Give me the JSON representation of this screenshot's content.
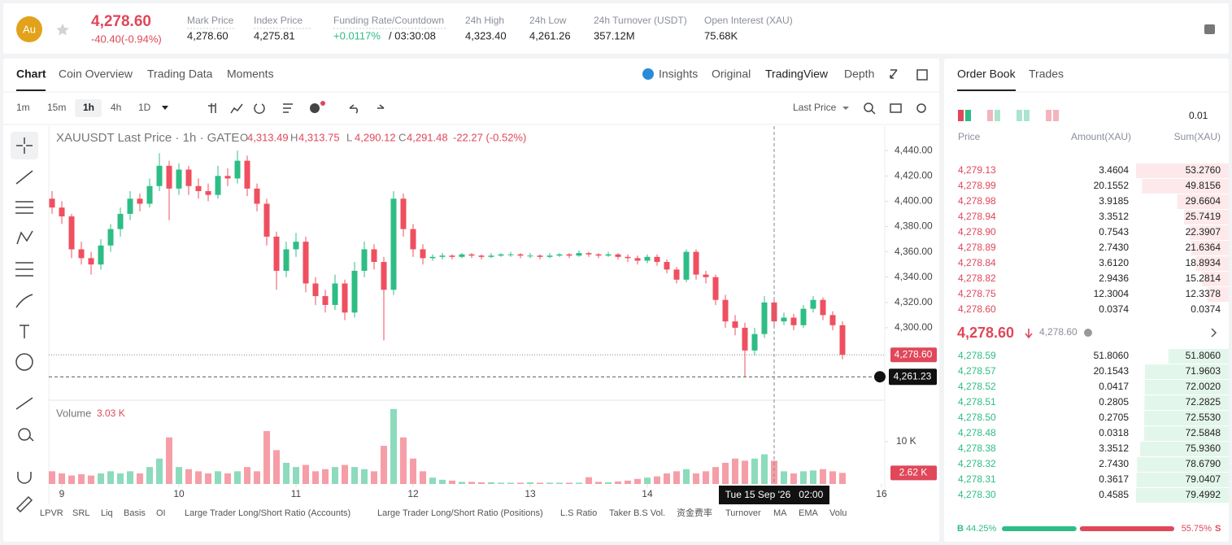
{
  "header": {
    "symbol_icon": "Au",
    "price": "4,278.60",
    "change": "-40.40(-0.94%)",
    "stats": [
      {
        "label": "Mark Price",
        "value": "4,278.60"
      },
      {
        "label": "Index Price",
        "value": "4,275.81"
      },
      {
        "label": "Funding Rate/Countdown",
        "value": "+0.0117%",
        "value2": "/ 03:30:08"
      },
      {
        "label": "24h High",
        "value": "4,323.40"
      },
      {
        "label": "24h Low",
        "value": "4,261.26"
      },
      {
        "label": "24h Turnover (USDT)",
        "value": "357.12M"
      },
      {
        "label": "Open Interest (XAU)",
        "value": "75.68K"
      }
    ]
  },
  "tabs": [
    "Chart",
    "Coin Overview",
    "Trading Data",
    "Moments"
  ],
  "view_tabs": [
    "Insights",
    "Original",
    "TradingView",
    "Depth"
  ],
  "intervals": [
    "1m",
    "15m",
    "1h",
    "4h",
    "1D"
  ],
  "price_type": "Last Price",
  "chart_data": {
    "type": "candlestick",
    "title": "XAUUSDT Last Price · 1h · GATE",
    "ohlc_legend": [
      {
        "key": "O",
        "value": "4,313.49"
      },
      {
        "key": "H",
        "value": "4,313.75"
      },
      {
        "key": "L",
        "value": "4,290.12"
      },
      {
        "key": "C",
        "value": "4,291.48"
      }
    ],
    "change": "-22.27 (-0.52%)",
    "up_color": "#2ebd85",
    "down_color": "#ef4f5f",
    "grid": false,
    "x": [
      0,
      2,
      4,
      6,
      8,
      10,
      12,
      14,
      16,
      18,
      20,
      22,
      24,
      26,
      28,
      30,
      32,
      34,
      36,
      38,
      40,
      42,
      44,
      46,
      48,
      50,
      52,
      54,
      56,
      58,
      60,
      62,
      64,
      66,
      68,
      70,
      72,
      74,
      76,
      78,
      80,
      82,
      84,
      86,
      88,
      90,
      92,
      94,
      96,
      98,
      100,
      102,
      104,
      106,
      108,
      110,
      112,
      114,
      116,
      118,
      120,
      122,
      124,
      126,
      128,
      130,
      132,
      134,
      136,
      138,
      140,
      142,
      144,
      146,
      148,
      150,
      152,
      154,
      156,
      158,
      160,
      162
    ],
    "candles": [
      [
        4402,
        4408,
        4390,
        4395
      ],
      [
        4395,
        4400,
        4382,
        4388
      ],
      [
        4388,
        4390,
        4355,
        4362
      ],
      [
        4362,
        4368,
        4350,
        4355
      ],
      [
        4355,
        4360,
        4342,
        4350
      ],
      [
        4350,
        4370,
        4346,
        4365
      ],
      [
        4365,
        4382,
        4360,
        4378
      ],
      [
        4378,
        4395,
        4372,
        4390
      ],
      [
        4390,
        4408,
        4385,
        4402
      ],
      [
        4402,
        4406,
        4392,
        4398
      ],
      [
        4398,
        4418,
        4395,
        4412
      ],
      [
        4412,
        4438,
        4408,
        4428
      ],
      [
        4428,
        4432,
        4385,
        4410
      ],
      [
        4410,
        4430,
        4405,
        4425
      ],
      [
        4425,
        4428,
        4405,
        4412
      ],
      [
        4412,
        4418,
        4402,
        4408
      ],
      [
        4408,
        4414,
        4400,
        4405
      ],
      [
        4405,
        4428,
        4402,
        4420
      ],
      [
        4420,
        4426,
        4412,
        4418
      ],
      [
        4418,
        4440,
        4414,
        4432
      ],
      [
        4432,
        4436,
        4404,
        4410
      ],
      [
        4410,
        4414,
        4392,
        4398
      ],
      [
        4398,
        4402,
        4365,
        4372
      ],
      [
        4372,
        4376,
        4330,
        4345
      ],
      [
        4345,
        4368,
        4340,
        4362
      ],
      [
        4362,
        4375,
        4356,
        4368
      ],
      [
        4368,
        4372,
        4328,
        4335
      ],
      [
        4335,
        4340,
        4318,
        4325
      ],
      [
        4325,
        4330,
        4312,
        4318
      ],
      [
        4318,
        4342,
        4314,
        4335
      ],
      [
        4335,
        4338,
        4306,
        4312
      ],
      [
        4312,
        4352,
        4308,
        4345
      ],
      [
        4345,
        4368,
        4340,
        4362
      ],
      [
        4362,
        4366,
        4346,
        4352
      ],
      [
        4352,
        4356,
        4290,
        4330
      ],
      [
        4330,
        4408,
        4326,
        4402
      ],
      [
        4402,
        4406,
        4372,
        4378
      ],
      [
        4378,
        4382,
        4356,
        4362
      ],
      [
        4362,
        4366,
        4350,
        4355
      ],
      [
        4355,
        4358,
        4353,
        4356
      ],
      [
        4356,
        4359,
        4354,
        4357
      ],
      [
        4357,
        4358,
        4354,
        4356
      ],
      [
        4356,
        4359,
        4355,
        4358
      ],
      [
        4358,
        4359,
        4355,
        4357
      ],
      [
        4357,
        4358,
        4354,
        4356
      ],
      [
        4356,
        4359,
        4355,
        4357
      ],
      [
        4357,
        4359,
        4356,
        4358
      ],
      [
        4358,
        4360,
        4356,
        4358
      ],
      [
        4358,
        4359,
        4355,
        4357
      ],
      [
        4357,
        4359,
        4355,
        4357
      ],
      [
        4357,
        4358,
        4354,
        4356
      ],
      [
        4356,
        4359,
        4355,
        4357
      ],
      [
        4357,
        4359,
        4356,
        4358
      ],
      [
        4358,
        4359,
        4355,
        4357
      ],
      [
        4357,
        4361,
        4356,
        4359
      ],
      [
        4359,
        4360,
        4356,
        4358
      ],
      [
        4358,
        4359,
        4355,
        4357
      ],
      [
        4357,
        4360,
        4356,
        4358
      ],
      [
        4358,
        4359,
        4354,
        4356
      ],
      [
        4356,
        4358,
        4352,
        4355
      ],
      [
        4355,
        4357,
        4350,
        4353
      ],
      [
        4353,
        4358,
        4351,
        4356
      ],
      [
        4356,
        4358,
        4349,
        4352
      ],
      [
        4352,
        4354,
        4343,
        4346
      ],
      [
        4346,
        4348,
        4335,
        4338
      ],
      [
        4338,
        4362,
        4336,
        4360
      ],
      [
        4360,
        4362,
        4338,
        4342
      ],
      [
        4342,
        4345,
        4335,
        4340
      ],
      [
        4340,
        4342,
        4318,
        4322
      ],
      [
        4322,
        4326,
        4300,
        4305
      ],
      [
        4305,
        4310,
        4294,
        4300
      ],
      [
        4300,
        4304,
        4261.23,
        4282
      ],
      [
        4282,
        4300,
        4278,
        4295
      ],
      [
        4295,
        4325,
        4292,
        4320
      ],
      [
        4320,
        4323,
        4300,
        4305
      ],
      [
        4305,
        4312,
        4302,
        4308
      ],
      [
        4308,
        4311,
        4298,
        4302
      ],
      [
        4302,
        4318,
        4300,
        4315
      ],
      [
        4315,
        4325,
        4312,
        4322
      ],
      [
        4322,
        4324,
        4306,
        4310
      ],
      [
        4310,
        4313,
        4298,
        4302
      ],
      [
        4302,
        4305,
        4275,
        4278.6
      ]
    ],
    "xlim": [
      -0.67,
      170.67
    ],
    "ylim": [
      4244,
      4459.4
    ],
    "xticks": [
      {
        "value": 2,
        "label": "9"
      },
      {
        "value": 26,
        "label": "10"
      },
      {
        "value": 50,
        "label": "11"
      },
      {
        "value": 74,
        "label": "12"
      },
      {
        "value": 98,
        "label": "13"
      },
      {
        "value": 122,
        "label": "14"
      },
      {
        "value": 170,
        "label": "16"
      }
    ],
    "yticks": [
      {
        "value": 4300,
        "label": "4,300.00"
      },
      {
        "value": 4320,
        "label": "4,320.00"
      },
      {
        "value": 4340,
        "label": "4,340.00"
      },
      {
        "value": 4360,
        "label": "4,360.00"
      },
      {
        "value": 4380,
        "label": "4,380.00"
      },
      {
        "value": 4400,
        "label": "4,400.00"
      },
      {
        "value": 4420,
        "label": "4,420.00"
      },
      {
        "value": 4440,
        "label": "4,440.00"
      }
    ],
    "last_price": {
      "value": 4278.6,
      "label": "4,278.60"
    },
    "low_line": {
      "value": 4261.23,
      "label": "4,261.23"
    },
    "crosshair": {
      "x": 148,
      "label": "Tue 15 Sep '26   02:00"
    },
    "volume": {
      "title": "Volume",
      "current": "3.03 K",
      "ylim": [
        0,
        19.2
      ],
      "yticks": [
        {
          "value": 10,
          "label": "10 K"
        }
      ],
      "last": {
        "value": 2.62,
        "label": "2.62 K"
      },
      "values": [
        3,
        2.5,
        2,
        2.3,
        2,
        2.5,
        3,
        2.5,
        3,
        2.5,
        4,
        6,
        11,
        4,
        3.5,
        3,
        2.5,
        3,
        2.5,
        3,
        4,
        3,
        12.5,
        8,
        5,
        4,
        4.5,
        3,
        3.5,
        4,
        4.5,
        4,
        3.5,
        3,
        9,
        17.7,
        11,
        6,
        3,
        1.5,
        1,
        0.8,
        0.5,
        0.5,
        0.4,
        0.4,
        0.3,
        0.3,
        0.3,
        0.4,
        0.3,
        0.3,
        0.3,
        0.3,
        0.3,
        1.6,
        0.5,
        0.4,
        0.6,
        0.8,
        1.2,
        1.5,
        1.8,
        2.5,
        3,
        3.5,
        2.5,
        3,
        4,
        5,
        6,
        5.5,
        6,
        7,
        5.5,
        3,
        2.5,
        3,
        3.2,
        3.5,
        3,
        2.62
      ]
    }
  },
  "indicators": [
    "LPVR",
    "SRL",
    "Liq",
    "Basis",
    "OI",
    "Large Trader Long/Short Ratio (Accounts)",
    "Large Trader Long/Short Ratio (Positions)",
    "L.S Ratio",
    "Taker B.S Vol.",
    "资金费率",
    "Turnover",
    "MA",
    "EMA",
    "Volu"
  ],
  "order_book": {
    "tabs": [
      "Order Book",
      "Trades"
    ],
    "precision": "0.01",
    "columns": [
      "Price",
      "Amount(XAU)",
      "Sum(XAU)"
    ],
    "asks": [
      [
        "4,279.13",
        "3.4604",
        {
          "value": 53.276,
          "label": "53.2760"
        }
      ],
      [
        "4,278.99",
        "20.1552",
        {
          "value": 49.8156,
          "label": "49.8156"
        }
      ],
      [
        "4,278.98",
        "3.9185",
        {
          "value": 29.6604,
          "label": "29.6604"
        }
      ],
      [
        "4,278.94",
        "3.3512",
        {
          "value": 25.7419,
          "label": "25.7419"
        }
      ],
      [
        "4,278.90",
        "0.7543",
        {
          "value": 22.3907,
          "label": "22.3907"
        }
      ],
      [
        "4,278.89",
        "2.7430",
        {
          "value": 21.6364,
          "label": "21.6364"
        }
      ],
      [
        "4,278.84",
        "3.6120",
        {
          "value": 18.8934,
          "label": "18.8934"
        }
      ],
      [
        "4,278.82",
        "2.9436",
        {
          "value": 15.2814,
          "label": "15.2814"
        }
      ],
      [
        "4,278.75",
        "12.3004",
        {
          "value": 12.3378,
          "label": "12.3378"
        }
      ],
      [
        "4,278.60",
        "0.0374",
        {
          "value": 0.0374,
          "label": "0.0374"
        }
      ]
    ],
    "mid_price": "4,278.60",
    "mark_price": "4,278.60",
    "bids": [
      [
        "4,278.59",
        "51.8060",
        {
          "value": 51.806,
          "label": "51.8060"
        }
      ],
      [
        "4,278.57",
        "20.1543",
        {
          "value": 71.9603,
          "label": "71.9603"
        }
      ],
      [
        "4,278.52",
        "0.0417",
        {
          "value": 72.002,
          "label": "72.0020"
        }
      ],
      [
        "4,278.51",
        "0.2805",
        {
          "value": 72.2825,
          "label": "72.2825"
        }
      ],
      [
        "4,278.50",
        "0.2705",
        {
          "value": 72.553,
          "label": "72.5530"
        }
      ],
      [
        "4,278.48",
        "0.0318",
        {
          "value": 72.5848,
          "label": "72.5848"
        }
      ],
      [
        "4,278.38",
        "3.3512",
        {
          "value": 75.936,
          "label": "75.9360"
        }
      ],
      [
        "4,278.32",
        "2.7430",
        {
          "value": 78.679,
          "label": "78.6790"
        }
      ],
      [
        "4,278.31",
        "0.3617",
        {
          "value": 79.0407,
          "label": "79.0407"
        }
      ],
      [
        "4,278.30",
        "0.4585",
        {
          "value": 79.4992,
          "label": "79.4992"
        }
      ]
    ],
    "buy_label": "B",
    "buy_ratio": {
      "value": 44.25,
      "label": "44.25%"
    },
    "sell_ratio": {
      "value": 55.75,
      "label": "55.75%"
    },
    "sell_label": "S"
  }
}
